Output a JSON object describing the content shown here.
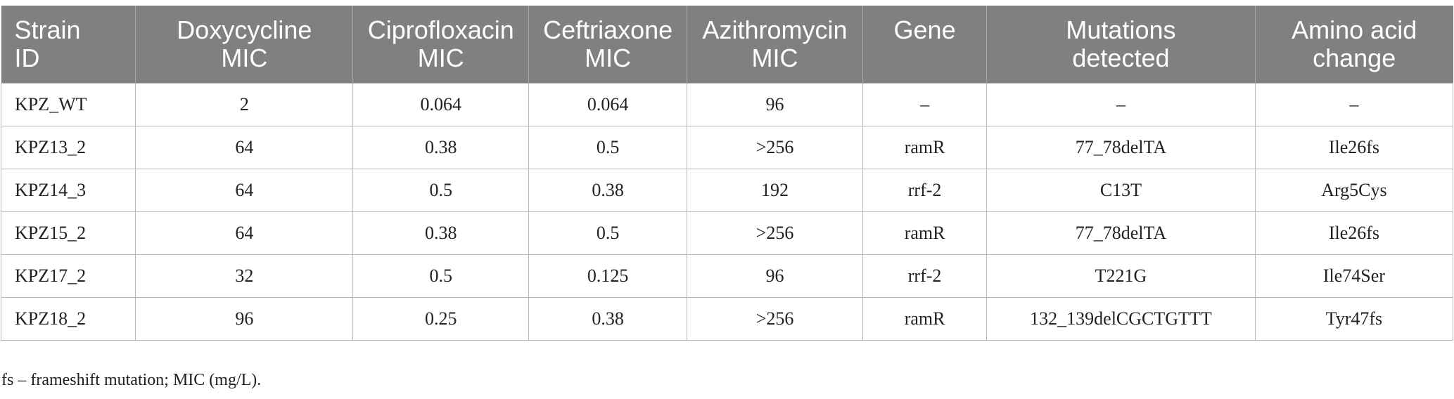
{
  "table": {
    "headers": [
      [
        "Strain",
        "ID"
      ],
      [
        "Doxycycline",
        "MIC"
      ],
      [
        "Ciprofloxacin",
        "MIC"
      ],
      [
        "Ceftriaxone",
        "MIC"
      ],
      [
        "Azithromycin",
        "MIC"
      ],
      [
        "Gene",
        ""
      ],
      [
        "Mutations",
        "detected"
      ],
      [
        "Amino acid",
        "change"
      ]
    ],
    "rows": [
      [
        "KPZ_WT",
        "2",
        "0.064",
        "0.064",
        "96",
        "–",
        "–",
        "–"
      ],
      [
        "KPZ13_2",
        "64",
        "0.38",
        "0.5",
        ">256",
        "ramR",
        "77_78delTA",
        "Ile26fs"
      ],
      [
        "KPZ14_3",
        "64",
        "0.5",
        "0.38",
        "192",
        "rrf-2",
        "C13T",
        "Arg5Cys"
      ],
      [
        "KPZ15_2",
        "64",
        "0.38",
        "0.5",
        ">256",
        "ramR",
        "77_78delTA",
        "Ile26fs"
      ],
      [
        "KPZ17_2",
        "32",
        "0.5",
        "0.125",
        "96",
        "rrf-2",
        "T221G",
        "Ile74Ser"
      ],
      [
        "KPZ18_2",
        "96",
        "0.25",
        "0.38",
        ">256",
        "ramR",
        "132_139delCGCTGTTT",
        "Tyr47fs"
      ]
    ]
  },
  "footnote": "fs – frameshift mutation; MIC (mg/L)."
}
